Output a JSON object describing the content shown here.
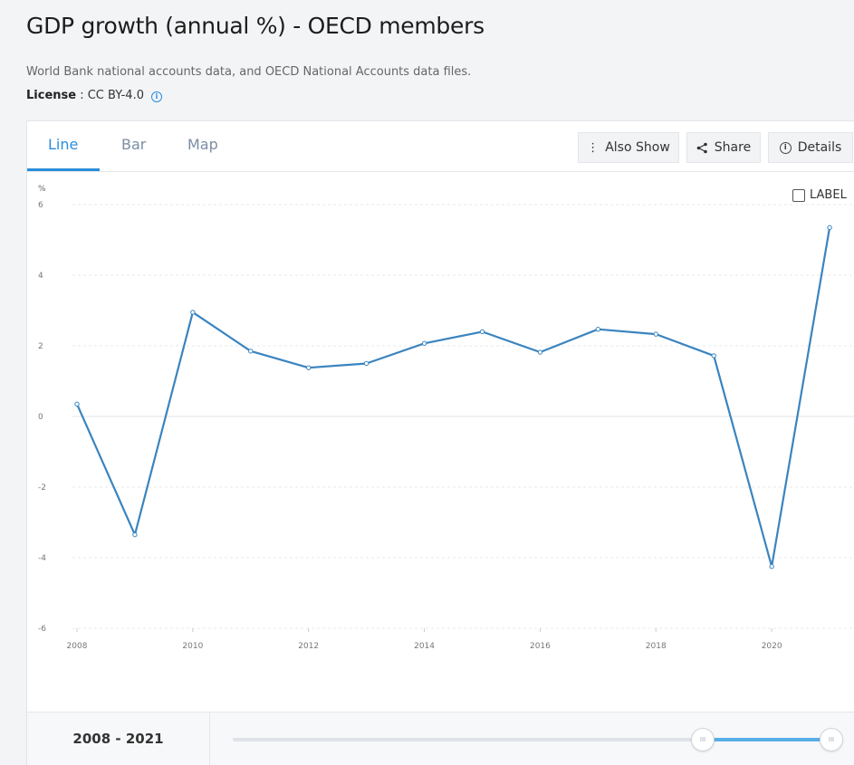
{
  "page": {
    "title": "GDP growth (annual %) - OECD members",
    "source": "World Bank national accounts data, and OECD National Accounts data files.",
    "license_label": "License",
    "license_value": " : CC BY-4.0"
  },
  "tabs": [
    {
      "label": "Line",
      "active": true
    },
    {
      "label": "Bar",
      "active": false
    },
    {
      "label": "Map",
      "active": false
    }
  ],
  "toolbar": {
    "also_show": "Also Show",
    "share": "Share",
    "details": "Details"
  },
  "label_toggle": "LABEL",
  "colors": {
    "accent": "#2a8ddb",
    "line": "#3a84bf"
  },
  "chart_data": {
    "type": "line",
    "ylabel": "%",
    "ylim": [
      -6,
      6
    ],
    "yticks": [
      -6,
      -4,
      -2,
      0,
      2,
      4,
      6
    ],
    "xticks": [
      2008,
      2010,
      2012,
      2014,
      2016,
      2018,
      2020
    ],
    "x": [
      2008,
      2009,
      2010,
      2011,
      2012,
      2013,
      2014,
      2015,
      2016,
      2017,
      2018,
      2019,
      2020,
      2021
    ],
    "series": [
      {
        "name": "OECD members",
        "values": [
          0.35,
          -3.35,
          2.95,
          1.85,
          1.38,
          1.5,
          2.07,
          2.4,
          1.82,
          2.47,
          2.33,
          1.72,
          -4.25,
          5.35
        ]
      }
    ]
  },
  "range": {
    "label": "2008 - 2021",
    "handle_glyph": "III"
  }
}
